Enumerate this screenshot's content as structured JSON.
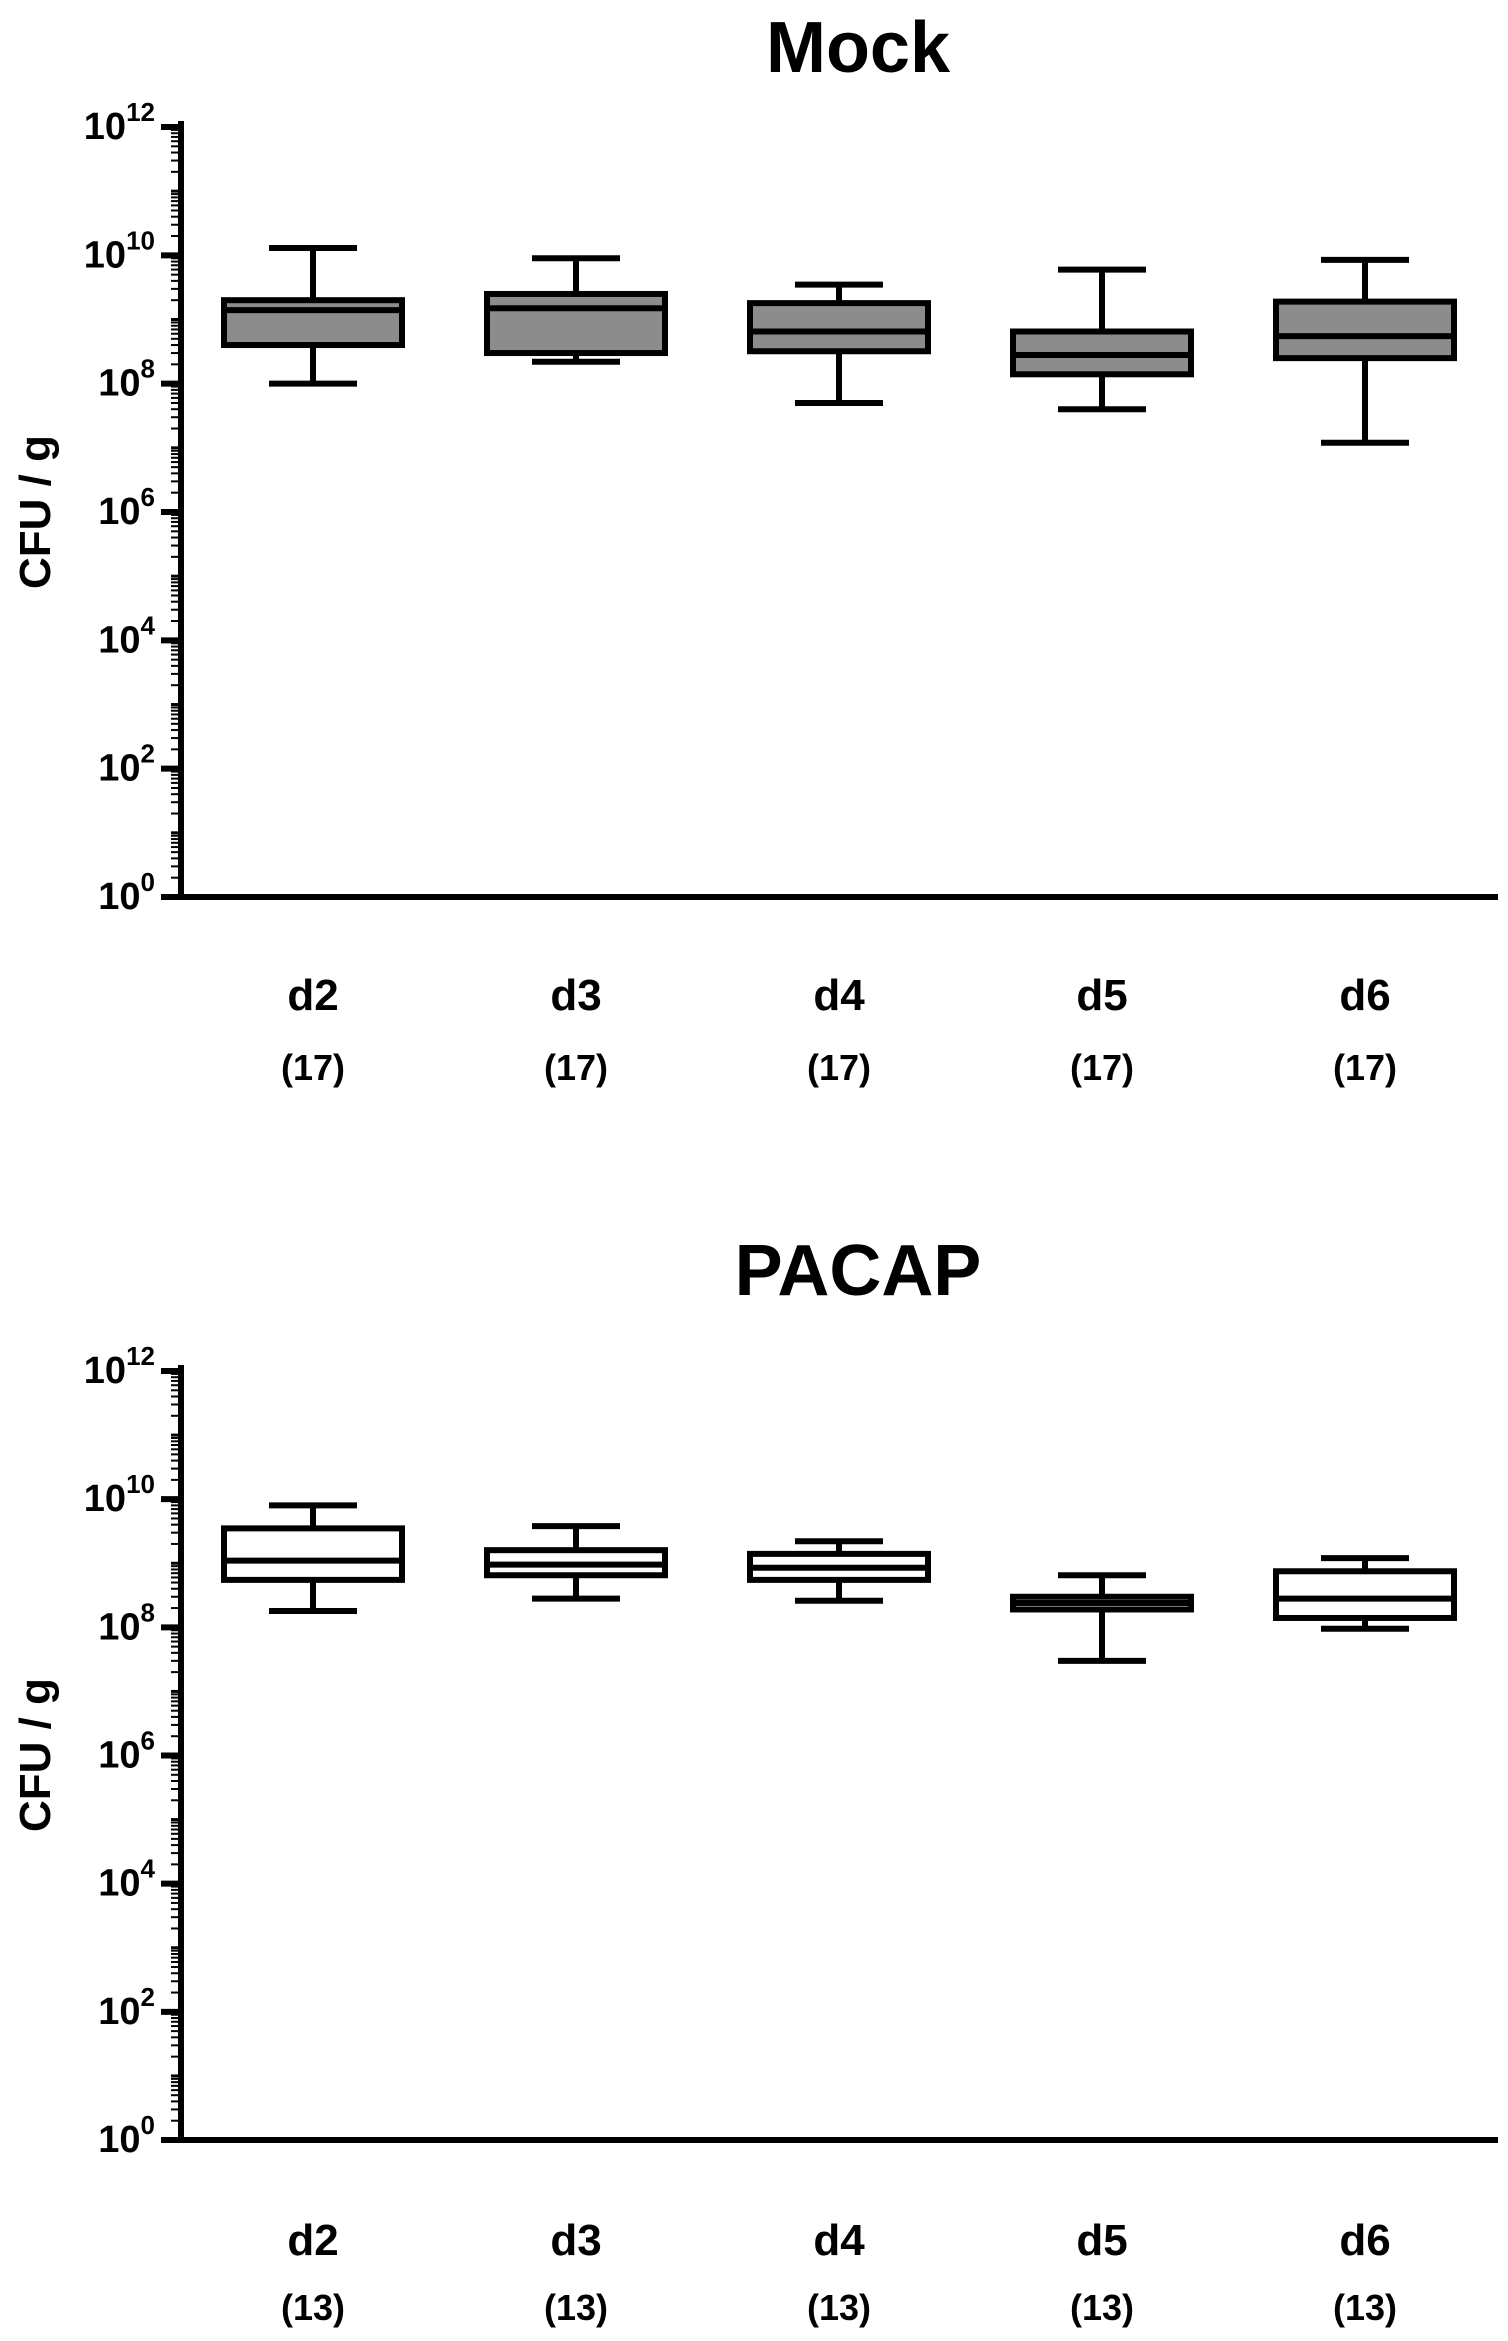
{
  "chart_data": [
    {
      "type": "box",
      "title": "Mock",
      "ylabel": "CFU / g",
      "yscale": "log10",
      "ylim": [
        1,
        1000000000000.0
      ],
      "yticks": [
        {
          "base": "10",
          "exp": "0"
        },
        {
          "base": "10",
          "exp": "2"
        },
        {
          "base": "10",
          "exp": "4"
        },
        {
          "base": "10",
          "exp": "6"
        },
        {
          "base": "10",
          "exp": "8"
        },
        {
          "base": "10",
          "exp": "10"
        },
        {
          "base": "10",
          "exp": "12"
        }
      ],
      "categories": [
        "d2",
        "d3",
        "d4",
        "d5",
        "d6"
      ],
      "counts": [
        "(17)",
        "(17)",
        "(17)",
        "(17)",
        "(17)"
      ],
      "box_fill": "#8c8c8c",
      "boxes": [
        {
          "min": 100000000.0,
          "q1": 400000000.0,
          "median": 1400000000.0,
          "q3": 2000000000.0,
          "max": 13000000000.0
        },
        {
          "min": 220000000.0,
          "q1": 300000000.0,
          "median": 1500000000.0,
          "q3": 2500000000.0,
          "max": 9000000000.0
        },
        {
          "min": 50000000.0,
          "q1": 320000000.0,
          "median": 650000000.0,
          "q3": 1800000000.0,
          "max": 3500000000.0
        },
        {
          "min": 40000000.0,
          "q1": 140000000.0,
          "median": 280000000.0,
          "q3": 650000000.0,
          "max": 6000000000.0
        },
        {
          "min": 12000000.0,
          "q1": 250000000.0,
          "median": 550000000.0,
          "q3": 1900000000.0,
          "max": 8500000000.0
        }
      ]
    },
    {
      "type": "box",
      "title": "PACAP",
      "ylabel": "CFU / g",
      "yscale": "log10",
      "ylim": [
        1,
        1000000000000.0
      ],
      "yticks": [
        {
          "base": "10",
          "exp": "0"
        },
        {
          "base": "10",
          "exp": "2"
        },
        {
          "base": "10",
          "exp": "4"
        },
        {
          "base": "10",
          "exp": "6"
        },
        {
          "base": "10",
          "exp": "8"
        },
        {
          "base": "10",
          "exp": "10"
        },
        {
          "base": "10",
          "exp": "12"
        }
      ],
      "categories": [
        "d2",
        "d3",
        "d4",
        "d5",
        "d6"
      ],
      "counts": [
        "(13)",
        "(13)",
        "(13)",
        "(13)",
        "(13)"
      ],
      "box_fill": "#ffffff",
      "boxes": [
        {
          "min": 180000000.0,
          "q1": 550000000.0,
          "median": 1100000000.0,
          "q3": 3500000000.0,
          "max": 8000000000.0
        },
        {
          "min": 280000000.0,
          "q1": 650000000.0,
          "median": 950000000.0,
          "q3": 1600000000.0,
          "max": 3800000000.0
        },
        {
          "min": 260000000.0,
          "q1": 550000000.0,
          "median": 850000000.0,
          "q3": 1400000000.0,
          "max": 2200000000.0
        },
        {
          "min": 30000000.0,
          "q1": 190000000.0,
          "median": 240000000.0,
          "q3": 300000000.0,
          "max": 650000000.0
        },
        {
          "min": 95000000.0,
          "q1": 140000000.0,
          "median": 280000000.0,
          "q3": 750000000.0,
          "max": 1200000000.0
        }
      ]
    }
  ]
}
